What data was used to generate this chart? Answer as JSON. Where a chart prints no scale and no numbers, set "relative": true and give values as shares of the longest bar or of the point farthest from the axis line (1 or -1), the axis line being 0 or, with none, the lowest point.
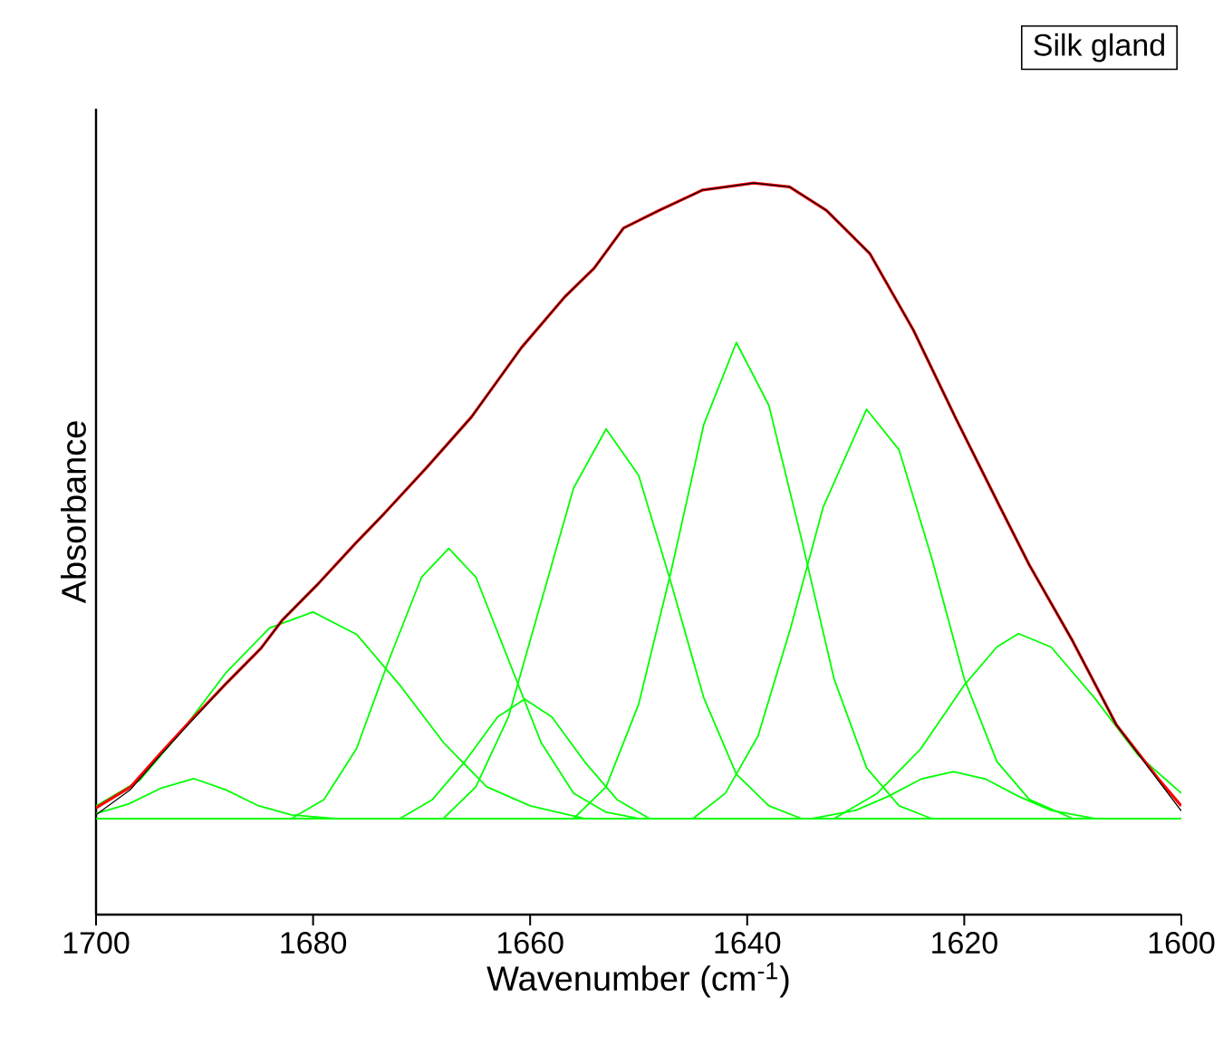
{
  "chart_data": {
    "type": "line",
    "relative": true,
    "xlabel": "Wavenumber (cm$^{-1}$)",
    "ylabel": "Absorbance",
    "annotations": [
      "Silk gland"
    ],
    "xlim": [
      1700,
      1600
    ],
    "xticks": [
      1700,
      1680,
      1660,
      1640,
      1620,
      1600
    ],
    "series": [
      {
        "color": "#00ff00",
        "x": [
          1700,
          1600
        ],
        "values": [
          0,
          0
        ]
      },
      {
        "color": "#00ff00",
        "x": [
          1700,
          1697,
          1694,
          1691,
          1688,
          1685,
          1682,
          1678
        ],
        "values": [
          0.008,
          0.023,
          0.048,
          0.063,
          0.045,
          0.02,
          0.006,
          0
        ]
      },
      {
        "color": "#00ff00",
        "x": [
          1700,
          1696,
          1692,
          1688,
          1684,
          1680,
          1676,
          1672,
          1668,
          1664,
          1660,
          1655
        ],
        "values": [
          0.02,
          0.06,
          0.14,
          0.23,
          0.3,
          0.325,
          0.29,
          0.21,
          0.12,
          0.05,
          0.02,
          0
        ]
      },
      {
        "color": "#00ff00",
        "x": [
          1682,
          1679,
          1676,
          1673,
          1670,
          1667.5,
          1665,
          1662,
          1659,
          1656,
          1653,
          1650
        ],
        "values": [
          0,
          0.03,
          0.11,
          0.25,
          0.38,
          0.425,
          0.38,
          0.25,
          0.12,
          0.04,
          0.01,
          0
        ]
      },
      {
        "color": "#00ff00",
        "x": [
          1672,
          1669,
          1666,
          1663,
          1660.5,
          1658,
          1655,
          1652,
          1649
        ],
        "values": [
          0,
          0.03,
          0.09,
          0.16,
          0.188,
          0.16,
          0.09,
          0.03,
          0
        ]
      },
      {
        "color": "#00ff00",
        "x": [
          1668,
          1665,
          1662,
          1659,
          1656,
          1653,
          1650,
          1647,
          1644,
          1641,
          1638,
          1635
        ],
        "values": [
          0,
          0.05,
          0.16,
          0.34,
          0.52,
          0.613,
          0.54,
          0.37,
          0.19,
          0.07,
          0.02,
          0
        ]
      },
      {
        "color": "#00ff00",
        "x": [
          1656,
          1653,
          1650,
          1647,
          1644,
          1641,
          1638,
          1635,
          1632,
          1629,
          1626,
          1623
        ],
        "values": [
          0,
          0.05,
          0.18,
          0.39,
          0.62,
          0.749,
          0.65,
          0.44,
          0.22,
          0.08,
          0.02,
          0
        ]
      },
      {
        "color": "#00ff00",
        "x": [
          1645,
          1642,
          1639,
          1636,
          1633,
          1629,
          1626,
          1623,
          1620,
          1617,
          1614,
          1610
        ],
        "values": [
          0,
          0.04,
          0.13,
          0.3,
          0.49,
          0.644,
          0.58,
          0.41,
          0.22,
          0.09,
          0.03,
          0
        ]
      },
      {
        "color": "#00ff00",
        "x": [
          1634,
          1630,
          1627,
          1624,
          1621,
          1618,
          1615,
          1612,
          1608
        ],
        "values": [
          0,
          0.013,
          0.035,
          0.062,
          0.074,
          0.062,
          0.035,
          0.013,
          0
        ]
      },
      {
        "color": "#00ff00",
        "x": [
          1632,
          1628,
          1624,
          1620,
          1617,
          1615,
          1612,
          1608,
          1604,
          1600
        ],
        "values": [
          0,
          0.04,
          0.11,
          0.21,
          0.27,
          0.291,
          0.27,
          0.19,
          0.1,
          0.04
        ]
      },
      {
        "color": "#ff0000",
        "x": [
          1700,
          1696.8,
          1694.2,
          1691.5,
          1688.1,
          1684.8,
          1682.8,
          1679.5,
          1676.1,
          1673.5,
          1669.5,
          1665.4,
          1660.8,
          1656.8,
          1654.1,
          1651.4,
          1648.1,
          1644.1,
          1639.4,
          1636.1,
          1632.7,
          1628.7,
          1624.7,
          1620.7,
          1616.7,
          1614,
          1610,
          1606,
          1602,
          1600
        ],
        "values": [
          0.017,
          0.05,
          0.1,
          0.15,
          0.211,
          0.268,
          0.313,
          0.37,
          0.433,
          0.479,
          0.553,
          0.632,
          0.741,
          0.821,
          0.866,
          0.929,
          0.957,
          0.989,
          1,
          0.994,
          0.957,
          0.889,
          0.769,
          0.627,
          0.49,
          0.399,
          0.279,
          0.148,
          0.06,
          0.02
        ]
      },
      {
        "color": "#000000",
        "x": [
          1700,
          1696.8,
          1694.2,
          1691.5,
          1688.1,
          1684.8,
          1682.8,
          1679.5,
          1676.1,
          1673.5,
          1669.5,
          1665.4,
          1660.8,
          1656.8,
          1654.1,
          1651.4,
          1648.1,
          1644.1,
          1639.4,
          1636.1,
          1632.7,
          1628.7,
          1624.7,
          1620.7,
          1616.7,
          1614,
          1610,
          1606,
          1602,
          1600
        ],
        "values": [
          0.006,
          0.046,
          0.097,
          0.148,
          0.211,
          0.268,
          0.313,
          0.37,
          0.433,
          0.479,
          0.553,
          0.632,
          0.741,
          0.821,
          0.866,
          0.929,
          0.957,
          0.989,
          1,
          0.994,
          0.957,
          0.889,
          0.769,
          0.627,
          0.49,
          0.399,
          0.279,
          0.148,
          0.057,
          0.012
        ]
      }
    ]
  }
}
